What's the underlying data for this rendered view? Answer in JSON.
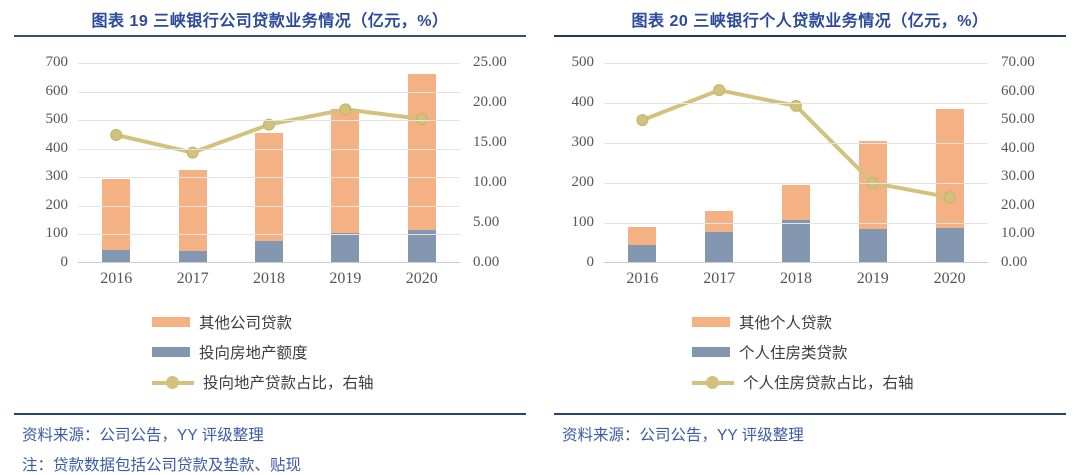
{
  "colors": {
    "bar_orange": "#F4B183",
    "bar_blue": "#8497B0",
    "line_khaki": "#D2C27E",
    "line_marker_edge": "#C4B269",
    "title_blue": "#2B4A9B",
    "rule_navy": "#1F3864",
    "source_blue": "#3A5CA8",
    "axis_text": "#555555",
    "gridline": "#E4E4E4"
  },
  "figures": [
    {
      "title": "图表 19 三峡银行公司贷款业务情况（亿元，%）",
      "legend": [
        {
          "label": "其他公司贷款",
          "type": "bar",
          "color": "#F4B183"
        },
        {
          "label": "投向房地产额度",
          "type": "bar",
          "color": "#8497B0"
        },
        {
          "label": "投向地产贷款占比，右轴",
          "type": "line",
          "color": "#D2C27E"
        }
      ],
      "source": "资料来源：公司公告，YY 评级整理",
      "note": "注：贷款数据包括公司贷款及垫款、贴现",
      "chart_data": {
        "type": "bar",
        "subtype": "stacked-bars-with-secondary-axis-line",
        "title": "图表 19 三峡银行公司贷款业务情况（亿元，%）",
        "categories": [
          "2016",
          "2017",
          "2018",
          "2019",
          "2020"
        ],
        "bar_series": [
          {
            "name": "投向房地产额度",
            "color": "#8497B0",
            "values": [
              45,
              42,
              78,
              105,
              115
            ]
          },
          {
            "name": "其他公司贷款",
            "color": "#F4B183",
            "values": [
              250,
              283,
              377,
              435,
              545
            ]
          }
        ],
        "bar_totals": [
          295,
          325,
          455,
          540,
          660
        ],
        "line_series": {
          "name": "投向地产贷款占比，右轴",
          "axis": "right",
          "color": "#D2C27E",
          "values": [
            16.0,
            13.8,
            17.3,
            19.2,
            18.0
          ]
        },
        "left_axis": {
          "min": 0,
          "max": 700,
          "step": 100,
          "labels": [
            "0",
            "100",
            "200",
            "300",
            "400",
            "500",
            "600",
            "700"
          ]
        },
        "right_axis": {
          "min": 0,
          "max": 25,
          "step": 5,
          "labels": [
            "0.00",
            "5.00",
            "10.00",
            "15.00",
            "20.00",
            "25.00"
          ]
        },
        "grid": true,
        "legend_position": "bottom"
      }
    },
    {
      "title": "图表 20 三峡银行个人贷款业务情况（亿元，%）",
      "legend": [
        {
          "label": "其他个人贷款",
          "type": "bar",
          "color": "#F4B183"
        },
        {
          "label": "个人住房类贷款",
          "type": "bar",
          "color": "#8497B0"
        },
        {
          "label": "个人住房贷款占比，右轴",
          "type": "line",
          "color": "#D2C27E"
        }
      ],
      "source": "资料来源：公司公告，YY 评级整理",
      "chart_data": {
        "type": "bar",
        "subtype": "stacked-bars-with-secondary-axis-line",
        "title": "图表 20 三峡银行个人贷款业务情况（亿元，%）",
        "categories": [
          "2016",
          "2017",
          "2018",
          "2019",
          "2020"
        ],
        "bar_series": [
          {
            "name": "个人住房类贷款",
            "color": "#8497B0",
            "values": [
              45,
              78,
              107,
              85,
              88
            ]
          },
          {
            "name": "其他个人贷款",
            "color": "#F4B183",
            "values": [
              45,
              52,
              88,
              220,
              297
            ]
          }
        ],
        "bar_totals": [
          90,
          130,
          195,
          305,
          385
        ],
        "line_series": {
          "name": "个人住房贷款占比，右轴",
          "axis": "right",
          "color": "#D2C27E",
          "values": [
            50.0,
            60.5,
            55.0,
            28.0,
            23.0
          ]
        },
        "left_axis": {
          "min": 0,
          "max": 500,
          "step": 100,
          "labels": [
            "0",
            "100",
            "200",
            "300",
            "400",
            "500"
          ]
        },
        "right_axis": {
          "min": 0,
          "max": 70,
          "step": 10,
          "labels": [
            "0.00",
            "10.00",
            "20.00",
            "30.00",
            "40.00",
            "50.00",
            "60.00",
            "70.00"
          ]
        },
        "grid": true,
        "legend_position": "bottom"
      }
    }
  ]
}
